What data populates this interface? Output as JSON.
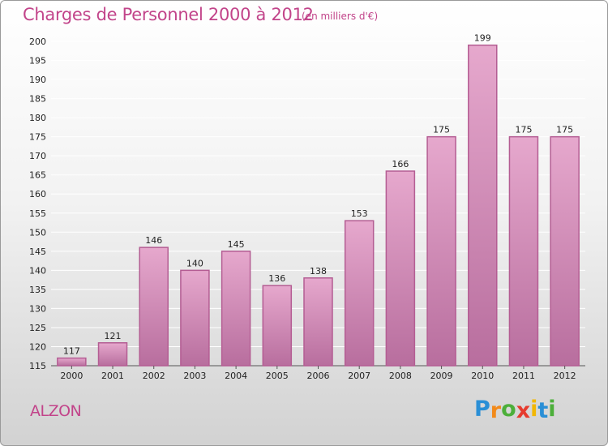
{
  "chart_data": {
    "type": "bar",
    "title": "Charges de Personnel 2000 à 2012",
    "subtitle": "(en milliers d'€)",
    "categories": [
      "2000",
      "2001",
      "2002",
      "2003",
      "2004",
      "2005",
      "2006",
      "2007",
      "2008",
      "2009",
      "2010",
      "2011",
      "2012"
    ],
    "values": [
      117,
      121,
      146,
      140,
      145,
      136,
      138,
      153,
      166,
      175,
      199,
      175,
      175
    ],
    "value_labels": [
      "117",
      "121",
      "146",
      "140",
      "145",
      "136",
      "138",
      "153",
      "166",
      "175",
      "199",
      "175",
      "175"
    ],
    "ylim": [
      115,
      200
    ],
    "yticks": [
      115,
      120,
      125,
      130,
      135,
      140,
      145,
      150,
      155,
      160,
      165,
      170,
      175,
      180,
      185,
      190,
      195,
      200
    ],
    "ytick_labels": [
      "115",
      "120",
      "125",
      "130",
      "135",
      "140",
      "145",
      "150",
      "155",
      "160",
      "165",
      "170",
      "175",
      "180",
      "185",
      "190",
      "195",
      "200"
    ],
    "grid": true,
    "bar_color": "#d47fb3",
    "text_color": "#c2448a"
  },
  "footer": {
    "town": "ALZON",
    "logo_letters": [
      "P",
      "r",
      "o",
      "x",
      "i",
      "t",
      "i"
    ],
    "logo_colors": [
      "#2a8fd6",
      "#f28a1a",
      "#4caf3a",
      "#e63b2e",
      "#f2b705",
      "#2a8fd6",
      "#4caf3a"
    ]
  }
}
